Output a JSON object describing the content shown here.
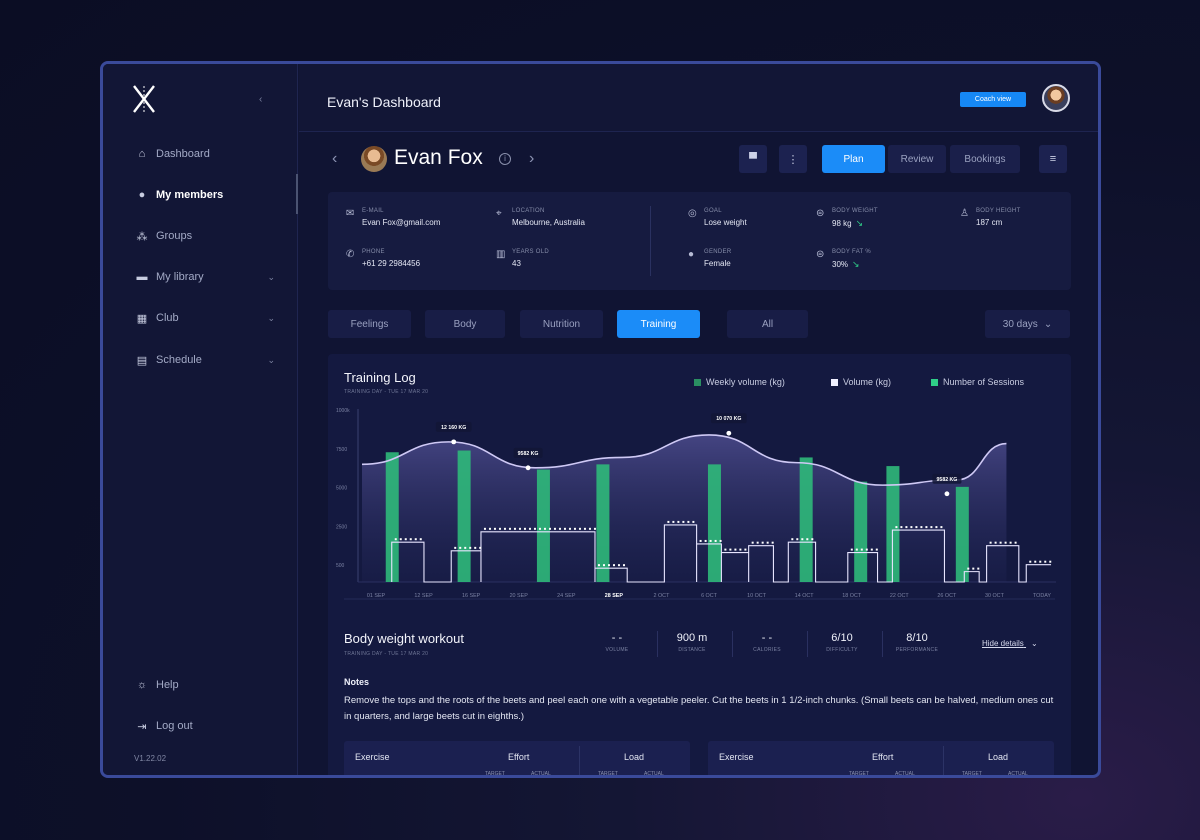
{
  "app": {
    "version": "V1.22.02",
    "page_title": "Evan's Dashboard",
    "coach_view_label": "Coach view"
  },
  "sidebar": {
    "items": [
      {
        "label": "Dashboard",
        "icon": "home-icon"
      },
      {
        "label": "My members",
        "icon": "user-icon",
        "active": true
      },
      {
        "label": "Groups",
        "icon": "group-icon"
      },
      {
        "label": "My library",
        "icon": "folder-icon",
        "has_chevron": true
      },
      {
        "label": "Club",
        "icon": "grid-icon",
        "has_chevron": true
      },
      {
        "label": "Schedule",
        "icon": "calendar-icon",
        "has_chevron": true
      }
    ],
    "bottom": [
      {
        "label": "Help",
        "icon": "bulb-icon"
      },
      {
        "label": "Log out",
        "icon": "logout-icon"
      }
    ]
  },
  "profile": {
    "name": "Evan Fox",
    "tabs": [
      "Plan",
      "Review",
      "Bookings"
    ],
    "active_tab": "Plan"
  },
  "info": {
    "email": {
      "label": "E-MAIL",
      "value": "Evan Fox@gmail.com"
    },
    "location": {
      "label": "LOCATION",
      "value": "Melbourne, Australia"
    },
    "phone": {
      "label": "PHONE",
      "value": "+61 29 2984456"
    },
    "years_old": {
      "label": "YEARS OLD",
      "value": "43"
    },
    "goal": {
      "label": "GOAL",
      "value": "Lose weight"
    },
    "gender": {
      "label": "GENDER",
      "value": "Female"
    },
    "body_weight": {
      "label": "BODY WEIGHT",
      "value": "98 kg"
    },
    "body_fat": {
      "label": "BODY FAT %",
      "value": "30%"
    },
    "body_height": {
      "label": "BODY HEIGHT",
      "value": "187 cm"
    }
  },
  "filters": {
    "tabs": [
      "Feelings",
      "Body",
      "Nutrition",
      "Training",
      "All"
    ],
    "active": "Training",
    "range": "30 days"
  },
  "training_log": {
    "title": "Training Log",
    "subtitle": "TRAINING DAY - TUE 17 MAR 20",
    "legend": [
      "Weekly volume (kg)",
      "Volume (kg)",
      "Number of Sessions"
    ]
  },
  "chart_data": {
    "type": "bar",
    "x_ticks": [
      "01 SEP",
      "12 SEP",
      "16 SEP",
      "20 SEP",
      "24 SEP",
      "28 SEP",
      "2 OCT",
      "6 OCT",
      "10 OCT",
      "14 OCT",
      "18 OCT",
      "22 OCT",
      "26 OCT",
      "30 OCT",
      "TODAY"
    ],
    "highlight_tick": "28 SEP",
    "y_ticks": [
      "1000k",
      "7500",
      "5000",
      "2500",
      "500"
    ],
    "ylim": [
      0,
      10000
    ],
    "series": [
      {
        "name": "Number of Sessions",
        "x_pos": [
          1.2,
          4.1,
          7.3,
          9.7,
          14.2,
          17.9,
          20.1,
          21.4,
          24.2
        ],
        "values": [
          7500,
          7600,
          6500,
          6800,
          6800,
          7200,
          5800,
          6700,
          5500
        ]
      },
      {
        "name": "Weekly volume (kg)",
        "x": [
          0,
          3.5,
          7,
          10.5,
          14,
          17.5,
          21,
          24,
          26
        ],
        "values": [
          6800,
          8100,
          6600,
          7200,
          8500,
          6900,
          5600,
          5900,
          8000
        ],
        "annotations": [
          {
            "x": 3.7,
            "value": 8100,
            "label": "12 160 KG"
          },
          {
            "x": 6.7,
            "value": 6600,
            "label": "9582 KG"
          },
          {
            "x": 14.8,
            "value": 8600,
            "label": "10 070 KG"
          },
          {
            "x": 23.6,
            "value": 5100,
            "label": "9582 KG"
          }
        ]
      },
      {
        "name": "Volume (kg)",
        "segments": [
          {
            "x0": 1.2,
            "x1": 2.5,
            "value": 2300
          },
          {
            "x0": 3.6,
            "x1": 4.8,
            "value": 1800
          },
          {
            "x0": 4.8,
            "x1": 9.4,
            "value": 2900
          },
          {
            "x0": 9.4,
            "x1": 10.7,
            "value": 800
          },
          {
            "x0": 12.2,
            "x1": 13.5,
            "value": 3300
          },
          {
            "x0": 13.5,
            "x1": 14.5,
            "value": 2200
          },
          {
            "x0": 14.5,
            "x1": 15.6,
            "value": 1700
          },
          {
            "x0": 15.6,
            "x1": 16.6,
            "value": 2100
          },
          {
            "x0": 17.2,
            "x1": 18.3,
            "value": 2300
          },
          {
            "x0": 19.6,
            "x1": 20.8,
            "value": 1700
          },
          {
            "x0": 21.4,
            "x1": 23.5,
            "value": 3000
          },
          {
            "x0": 24.3,
            "x1": 24.9,
            "value": 600
          },
          {
            "x0": 25.2,
            "x1": 26.5,
            "value": 2100
          },
          {
            "x0": 26.8,
            "x1": 27.8,
            "value": 1000
          }
        ]
      }
    ]
  },
  "workout": {
    "title": "Body weight workout",
    "subtitle": "TRAINING DAY - TUE 17 MAR 20",
    "stats": [
      {
        "value": "- -",
        "label": "VOLUME"
      },
      {
        "value": "900 m",
        "label": "DISTANCE"
      },
      {
        "value": "- -",
        "label": "CALORIES"
      },
      {
        "value": "6/10",
        "label": "DIFFICULTY"
      },
      {
        "value": "8/10",
        "label": "PERFORMANCE"
      }
    ],
    "hide_details": "Hide details",
    "notes_title": "Notes",
    "notes": "Remove the tops and the roots of the beets and peel each one with a vegetable peeler. Cut the beets in 1 1/2-inch chunks. (Small beets can be halved, medium ones cut in quarters, and large beets cut in eighths.)"
  },
  "exercise_table": {
    "headers": [
      "Exercise",
      "Effort",
      "Load"
    ],
    "sub": [
      "TARGET",
      "ACTUAL",
      "TARGET",
      "ACTUAL"
    ]
  },
  "colors": {
    "accent": "#1b8cf8",
    "bar": "#2fb97a",
    "line": "#c9c4f0",
    "bg": "#101433"
  }
}
